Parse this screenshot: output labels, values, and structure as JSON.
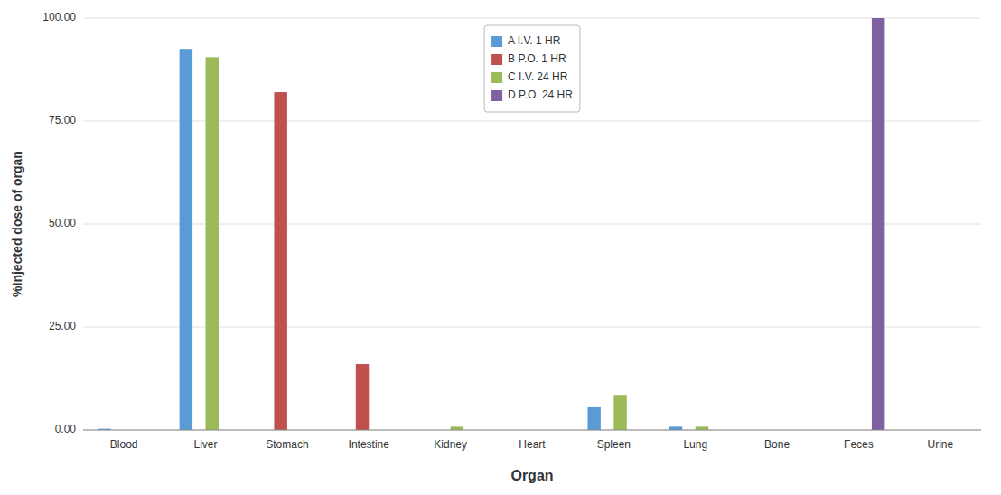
{
  "chart_data": {
    "type": "bar",
    "xlabel": "Organ",
    "ylabel": "%Injected dose of organ",
    "categories": [
      "Blood",
      "Liver",
      "Stomach",
      "Intestine",
      "Kidney",
      "Heart",
      "Spleen",
      "Lung",
      "Bone",
      "Feces",
      "Urine"
    ],
    "series": [
      {
        "name": "A I.V. 1 HR",
        "color": "#5B9BD5",
        "values": [
          0.3,
          92.5,
          0.0,
          0.0,
          0.0,
          0.0,
          5.5,
          0.8,
          0.0,
          0.0,
          0.0
        ]
      },
      {
        "name": "B P.O. 1 HR",
        "color": "#C0504D",
        "values": [
          0.0,
          0.0,
          82.0,
          16.0,
          0.0,
          0.0,
          0.0,
          0.0,
          0.0,
          0.0,
          0.0
        ]
      },
      {
        "name": "C I.V. 24 HR",
        "color": "#9BBB59",
        "values": [
          0.0,
          90.5,
          0.0,
          0.0,
          0.8,
          0.0,
          8.5,
          0.8,
          0.0,
          0.0,
          0.0
        ]
      },
      {
        "name": "D P.O. 24 HR",
        "color": "#7F60A0",
        "values": [
          0.0,
          0.0,
          0.0,
          0.0,
          0.0,
          0.0,
          0.0,
          0.0,
          0.0,
          100.0,
          0.0
        ]
      }
    ],
    "ylim": [
      0,
      100
    ],
    "yticks": [
      {
        "value": 0,
        "label": "0.00"
      },
      {
        "value": 25,
        "label": "25.00"
      },
      {
        "value": 50,
        "label": "50.00"
      },
      {
        "value": 75,
        "label": "75.00"
      },
      {
        "value": 100,
        "label": "100.00"
      }
    ],
    "grid": true,
    "legend": "top"
  }
}
